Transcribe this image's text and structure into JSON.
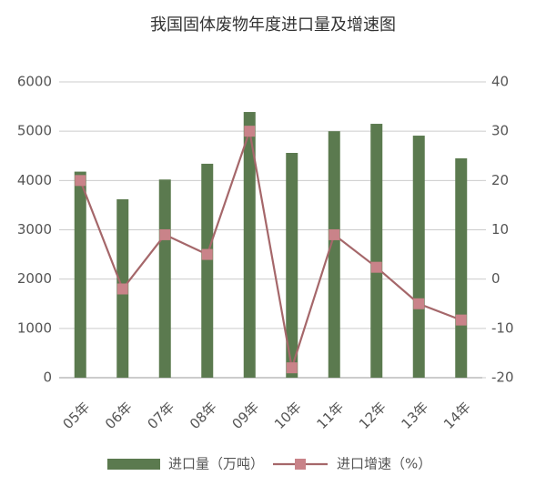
{
  "chart_data": {
    "type": "bar",
    "title": "我国固体废物年度进口量及增速图",
    "categories": [
      "05年",
      "06年",
      "07年",
      "08年",
      "09年",
      "10年",
      "11年",
      "12年",
      "13年",
      "14年"
    ],
    "series": [
      {
        "name": "进口量（万吨）",
        "type": "bar",
        "color": "#5b7a4f",
        "axis": "y",
        "values": [
          4180,
          3620,
          4020,
          4340,
          5390,
          4560,
          5000,
          5150,
          4910,
          4450
        ]
      },
      {
        "name": "进口增速（%）",
        "type": "line",
        "color": "#a5676a",
        "marker_color": "#c98389",
        "axis": "y2",
        "values": [
          20,
          -2,
          9,
          5,
          30,
          -18,
          9,
          2.4,
          -5,
          -8.3
        ]
      }
    ],
    "ylim": [
      0,
      6000
    ],
    "yticks": [
      0,
      1000,
      2000,
      3000,
      4000,
      5000,
      6000
    ],
    "y2lim": [
      -20,
      40
    ],
    "y2ticks": [
      -20,
      -10,
      0,
      10,
      20,
      30,
      40
    ],
    "grid": true
  }
}
